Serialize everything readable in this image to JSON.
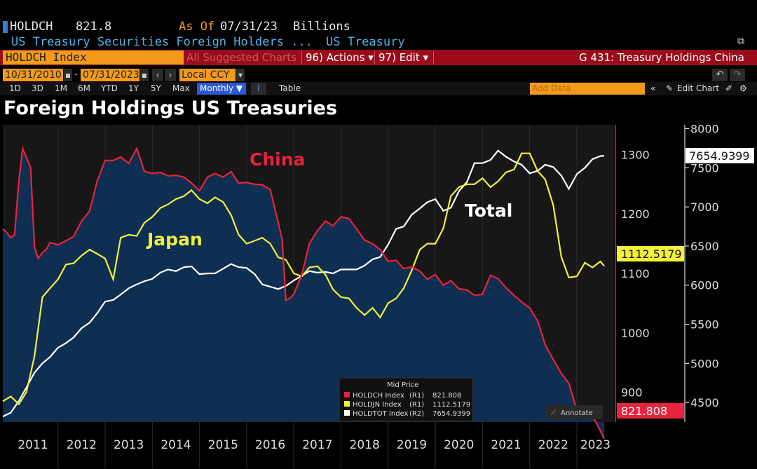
{
  "header": {
    "ticker": "HOLDCH",
    "last_value": "821.8",
    "as_of_label": "As Of",
    "as_of_date": "07/31/23",
    "units": "Billions",
    "description": "US Treasury Securities Foreign Holders ...",
    "source": "US Treasury"
  },
  "toolbar": {
    "index_name": "HOLDCH Index",
    "suggested_charts": "All Suggested Charts",
    "actions_label": "96) Actions ▾",
    "edit_label": "97) Edit ▾",
    "chart_name": "G 431: Treasury Holdings China"
  },
  "range": {
    "start_date": "10/31/2010",
    "end_date": "07/31/2023",
    "currency": "Local CCY",
    "periods": [
      "1D",
      "3D",
      "1M",
      "6M",
      "YTD",
      "1Y",
      "5Y",
      "Max"
    ],
    "frequency": "Monthly ▼",
    "table_label": "Table",
    "add_data_placeholder": "Add Data",
    "edit_chart_label": "Edit Chart"
  },
  "colors": {
    "china": "#e8233d",
    "japan": "#f2f03c",
    "total": "#ffffff",
    "area": "#0e2e52",
    "accent_orange": "#f29a1a",
    "toolbar_red": "#9a0c1a"
  },
  "chart_data": {
    "type": "line",
    "title": "Foreign Holdings US Treasuries",
    "x_range": [
      "2010-10",
      "2023-07"
    ],
    "x_ticks": [
      "2011",
      "2012",
      "2013",
      "2014",
      "2015",
      "2016",
      "2017",
      "2018",
      "2019",
      "2020",
      "2021",
      "2022",
      "2023"
    ],
    "y_left": {
      "ticks": [
        900,
        1000,
        1100,
        1200,
        1300
      ],
      "range": [
        850,
        1350
      ]
    },
    "y_right": {
      "ticks": [
        4500,
        5000,
        5500,
        6000,
        6500,
        7000,
        7500,
        8000
      ],
      "range": [
        4250,
        8050
      ]
    },
    "annotations": [
      {
        "text": "China",
        "series": "china"
      },
      {
        "text": "Japan",
        "series": "japan"
      },
      {
        "text": "Total",
        "series": "total"
      }
    ],
    "series": [
      {
        "name": "China",
        "axis": "R1",
        "style": "area",
        "x": [
          2010.83,
          2010.92,
          2011.0,
          2011.08,
          2011.17,
          2011.25,
          2011.33,
          2011.42,
          2011.5,
          2011.58,
          2011.67,
          2011.75,
          2011.83,
          2011.92,
          2012.0,
          2012.17,
          2012.33,
          2012.5,
          2012.67,
          2012.83,
          2013.0,
          2013.17,
          2013.33,
          2013.5,
          2013.67,
          2013.83,
          2014.0,
          2014.17,
          2014.33,
          2014.5,
          2014.67,
          2014.83,
          2015.0,
          2015.17,
          2015.33,
          2015.5,
          2015.67,
          2015.83,
          2016.0,
          2016.17,
          2016.33,
          2016.5,
          2016.67,
          2016.75,
          2016.83,
          2016.92,
          2017.0,
          2017.17,
          2017.33,
          2017.5,
          2017.67,
          2017.83,
          2018.0,
          2018.17,
          2018.33,
          2018.5,
          2018.67,
          2018.83,
          2019.0,
          2019.17,
          2019.33,
          2019.5,
          2019.67,
          2019.83,
          2020.0,
          2020.17,
          2020.33,
          2020.5,
          2020.67,
          2020.83,
          2021.0,
          2021.17,
          2021.33,
          2021.5,
          2021.67,
          2021.83,
          2022.0,
          2022.17,
          2022.33,
          2022.5,
          2022.67,
          2022.83,
          2023.0,
          2023.17,
          2023.33,
          2023.5,
          2023.58
        ],
        "values": [
          1175,
          1168,
          1160,
          1165,
          1255,
          1310,
          1295,
          1278,
          1145,
          1125,
          1135,
          1140,
          1152,
          1150,
          1148,
          1155,
          1162,
          1188,
          1205,
          1255,
          1290,
          1290,
          1296,
          1285,
          1310,
          1272,
          1268,
          1270,
          1264,
          1265,
          1262,
          1252,
          1239,
          1262,
          1268,
          1262,
          1271,
          1252,
          1253,
          1250,
          1249,
          1241,
          1185,
          1158,
          1055,
          1058,
          1065,
          1098,
          1150,
          1172,
          1188,
          1180,
          1195,
          1192,
          1175,
          1156,
          1150,
          1140,
          1120,
          1122,
          1108,
          1111,
          1104,
          1090,
          1098,
          1080,
          1088,
          1074,
          1072,
          1063,
          1065,
          1097,
          1091,
          1076,
          1063,
          1052,
          1042,
          1020,
          980,
          955,
          932,
          915,
          870,
          868,
          861,
          835,
          821.8
        ]
      },
      {
        "name": "Japan",
        "axis": "R1",
        "x": [
          2010.83,
          2011.0,
          2011.17,
          2011.33,
          2011.5,
          2011.67,
          2011.83,
          2012.0,
          2012.17,
          2012.33,
          2012.5,
          2012.67,
          2012.83,
          2013.0,
          2013.17,
          2013.33,
          2013.5,
          2013.67,
          2013.83,
          2014.0,
          2014.17,
          2014.33,
          2014.5,
          2014.67,
          2014.83,
          2015.0,
          2015.17,
          2015.33,
          2015.5,
          2015.67,
          2015.83,
          2016.0,
          2016.17,
          2016.33,
          2016.5,
          2016.67,
          2016.83,
          2017.0,
          2017.17,
          2017.33,
          2017.5,
          2017.67,
          2017.83,
          2018.0,
          2018.17,
          2018.33,
          2018.5,
          2018.67,
          2018.83,
          2019.0,
          2019.17,
          2019.33,
          2019.5,
          2019.67,
          2019.83,
          2020.0,
          2020.17,
          2020.33,
          2020.5,
          2020.67,
          2020.83,
          2021.0,
          2021.17,
          2021.33,
          2021.5,
          2021.67,
          2021.83,
          2022.0,
          2022.17,
          2022.33,
          2022.5,
          2022.67,
          2022.83,
          2023.0,
          2023.17,
          2023.33,
          2023.5,
          2023.58
        ],
        "values": [
          885,
          893,
          880,
          900,
          960,
          1060,
          1075,
          1090,
          1115,
          1117,
          1130,
          1140,
          1133,
          1125,
          1090,
          1160,
          1165,
          1163,
          1185,
          1195,
          1210,
          1216,
          1225,
          1230,
          1240,
          1225,
          1218,
          1228,
          1220,
          1198,
          1165,
          1150,
          1155,
          1160,
          1150,
          1127,
          1123,
          1100,
          1095,
          1110,
          1112,
          1098,
          1073,
          1060,
          1058,
          1042,
          1030,
          1042,
          1026,
          1050,
          1058,
          1075,
          1105,
          1140,
          1150,
          1150,
          1176,
          1230,
          1245,
          1250,
          1250,
          1260,
          1245,
          1255,
          1270,
          1275,
          1302,
          1302,
          1272,
          1258,
          1215,
          1128,
          1093,
          1095,
          1118,
          1110,
          1120,
          1112.5179
        ]
      },
      {
        "name": "Total",
        "axis": "R2",
        "x": [
          2010.83,
          2011.0,
          2011.17,
          2011.33,
          2011.5,
          2011.67,
          2011.83,
          2012.0,
          2012.17,
          2012.33,
          2012.5,
          2012.67,
          2012.83,
          2013.0,
          2013.17,
          2013.33,
          2013.5,
          2013.67,
          2013.83,
          2014.0,
          2014.17,
          2014.33,
          2014.5,
          2014.67,
          2014.83,
          2015.0,
          2015.17,
          2015.33,
          2015.5,
          2015.67,
          2015.83,
          2016.0,
          2016.17,
          2016.33,
          2016.5,
          2016.67,
          2016.83,
          2017.0,
          2017.17,
          2017.33,
          2017.5,
          2017.67,
          2017.83,
          2018.0,
          2018.17,
          2018.33,
          2018.5,
          2018.67,
          2018.83,
          2019.0,
          2019.17,
          2019.33,
          2019.5,
          2019.67,
          2019.83,
          2020.0,
          2020.17,
          2020.33,
          2020.5,
          2020.67,
          2020.83,
          2021.0,
          2021.17,
          2021.33,
          2021.5,
          2021.67,
          2021.83,
          2022.0,
          2022.17,
          2022.33,
          2022.5,
          2022.67,
          2022.83,
          2023.0,
          2023.17,
          2023.33,
          2023.5,
          2023.58
        ],
        "values": [
          4320,
          4370,
          4520,
          4690,
          4880,
          5000,
          5080,
          5200,
          5260,
          5330,
          5450,
          5520,
          5640,
          5790,
          5810,
          5880,
          5960,
          6010,
          6050,
          6080,
          6160,
          6200,
          6180,
          6230,
          6240,
          6140,
          6150,
          6150,
          6210,
          6270,
          6230,
          6220,
          6140,
          6010,
          5980,
          5950,
          5990,
          6060,
          6120,
          6180,
          6160,
          6170,
          6150,
          6200,
          6200,
          6200,
          6250,
          6330,
          6360,
          6520,
          6720,
          6750,
          6900,
          6980,
          7060,
          7100,
          6950,
          6990,
          7200,
          7320,
          7560,
          7560,
          7600,
          7720,
          7640,
          7580,
          7540,
          7430,
          7460,
          7540,
          7510,
          7400,
          7230,
          7420,
          7500,
          7610,
          7650,
          7654.9399
        ]
      }
    ],
    "end_labels": {
      "china": "821.808",
      "japan": "1112.5179",
      "total": "7654.9399"
    },
    "legend": {
      "title": "Mid Price",
      "placement": "bottom-center",
      "entries": [
        {
          "label": "HOLDCH Index",
          "axis": "(R1)",
          "value": "821.808"
        },
        {
          "label": "HOLDJN Index",
          "axis": "(R1)",
          "value": "1112.5179"
        },
        {
          "label": "HOLDTOT Index",
          "axis": "(R2)",
          "value": "7654.9399"
        }
      ],
      "annotate_label": "Annotate"
    }
  }
}
